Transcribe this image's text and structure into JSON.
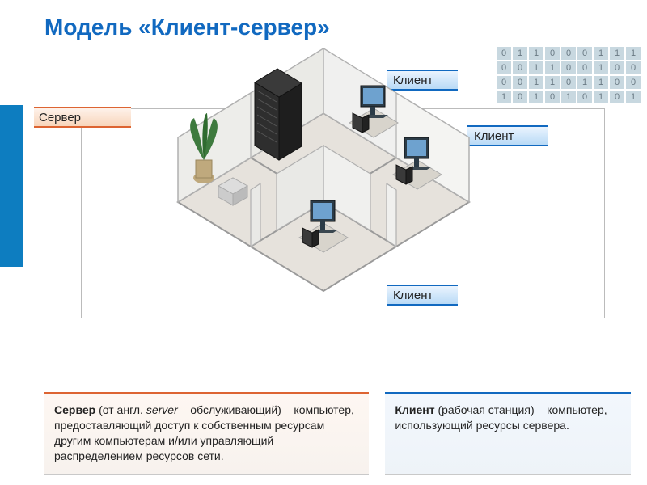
{
  "title": "Модель «Клиент-сервер»",
  "colors": {
    "accent": "#0d7dc0",
    "title": "#1169c0",
    "server_border": "#dd6432",
    "server_bg_top": "#fef2ea",
    "server_bg_bot": "#f8d5bb",
    "client_border": "#1169c0",
    "client_bg_top": "#eaf4fe",
    "client_bg_bot": "#b9daf6",
    "binary_bg": "#c8d8e0",
    "binary_fg": "#6a7a84",
    "frame": "#bbbbbb",
    "floor_fill": "#e6e2dc",
    "floor_stroke": "#9a9a9a",
    "wall_fill": "#f4f4f2",
    "wall_stroke": "#b0b0b0",
    "monitor_fill": "#2b3b47",
    "monitor_screen": "#6ea2cf",
    "rack_fill": "#2e2e2e",
    "rack_stroke": "#111111",
    "plant_pot": "#bfa97d",
    "plant_green": "#3e7a3e"
  },
  "binary": {
    "rows": [
      [
        "0",
        "1",
        "1",
        "0",
        "0",
        "0",
        "1",
        "1",
        "1"
      ],
      [
        "0",
        "0",
        "1",
        "1",
        "0",
        "0",
        "1",
        "0",
        "0"
      ],
      [
        "0",
        "0",
        "1",
        "1",
        "0",
        "1",
        "1",
        "0",
        "0"
      ],
      [
        "1",
        "0",
        "1",
        "0",
        "1",
        "0",
        "1",
        "0",
        "1"
      ]
    ]
  },
  "labels": {
    "server": "Сервер",
    "client1": "Клиент",
    "client2": "Клиент",
    "client3": "Клиент"
  },
  "diagram": {
    "type": "isometric-room",
    "rooms": 4,
    "server_rack": {
      "room": "top-left"
    },
    "workstations": [
      {
        "room": "top-right"
      },
      {
        "room": "bottom-right"
      },
      {
        "room": "bottom-left"
      }
    ],
    "plant": true,
    "printer": true
  },
  "definitions": {
    "server": {
      "term": "Сервер",
      "etym": " (от англ. ",
      "etym_word": "server",
      "etym_tail": " – обслуживающий) – компьютер, предоставляющий доступ к собственным ресурсам другим компьютерам и/или управляющий распределением ресурсов сети."
    },
    "client": {
      "term": "Клиент",
      "etym": " (рабочая станция) – компьютер, использующий ресурсы сервера."
    }
  }
}
